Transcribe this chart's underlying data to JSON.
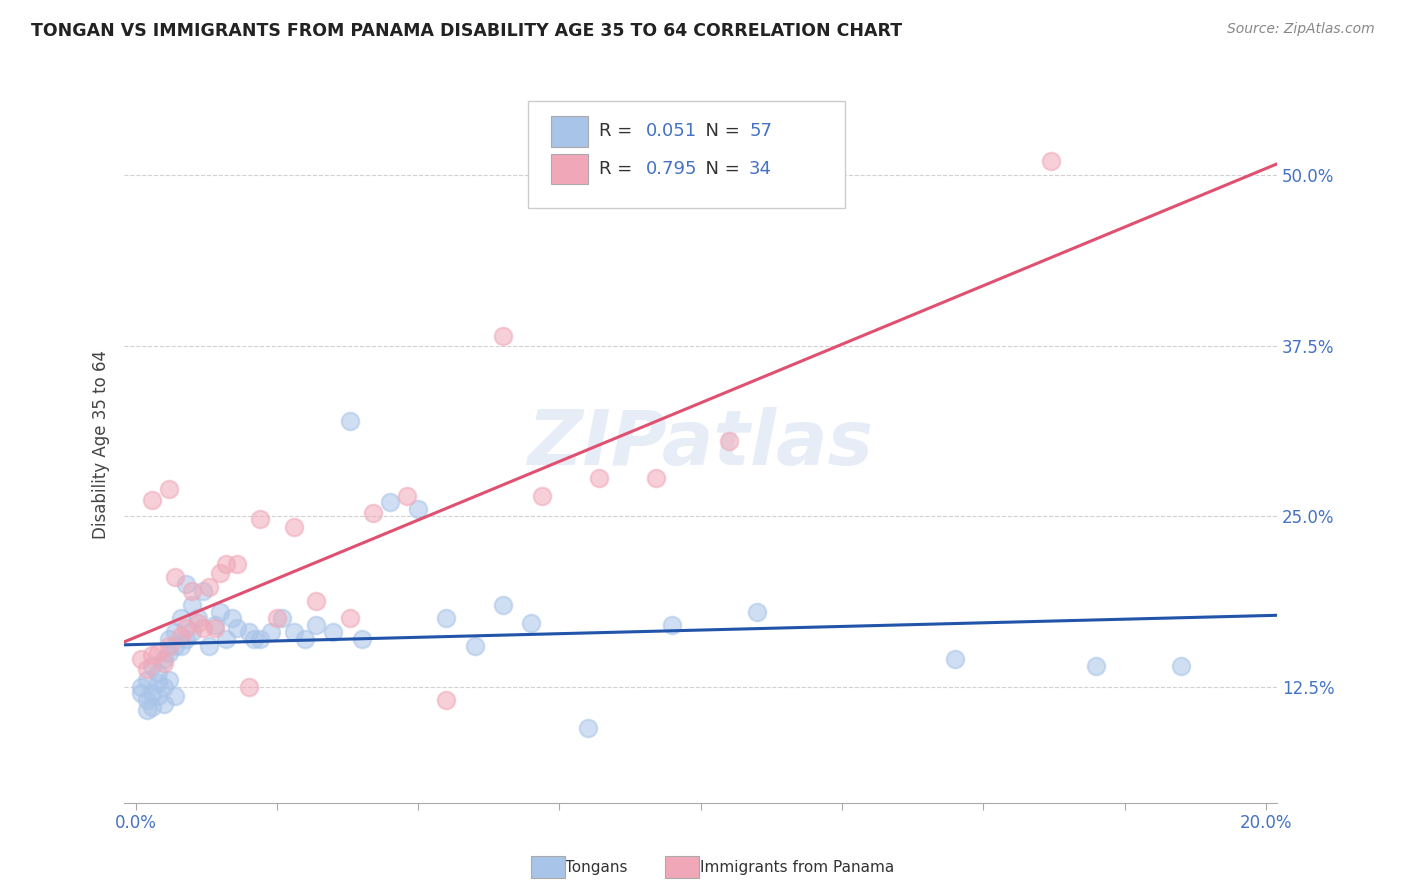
{
  "title": "TONGAN VS IMMIGRANTS FROM PANAMA DISABILITY AGE 35 TO 64 CORRELATION CHART",
  "source": "Source: ZipAtlas.com",
  "xlabel_vals": [
    0.0,
    0.025,
    0.05,
    0.075,
    0.1,
    0.125,
    0.15,
    0.175,
    0.2
  ],
  "xlabel_show": [
    0.0,
    0.2
  ],
  "ylabel_vals": [
    0.125,
    0.25,
    0.375,
    0.5
  ],
  "ylabel_label": "Disability Age 35 to 64",
  "xlim": [
    -0.002,
    0.202
  ],
  "ylim": [
    0.04,
    0.565
  ],
  "blue_R": 0.051,
  "blue_N": 57,
  "pink_R": 0.795,
  "pink_N": 34,
  "blue_color": "#a8c4e8",
  "pink_color": "#f0a8b8",
  "blue_line_color": "#2255aa",
  "pink_line_color": "#e05070",
  "legend_label1": "Tongans",
  "legend_label2": "Immigrants from Panama",
  "watermark": "ZIPatlas",
  "blue_x": [
    0.001,
    0.001,
    0.002,
    0.002,
    0.002,
    0.003,
    0.003,
    0.003,
    0.004,
    0.004,
    0.004,
    0.005,
    0.005,
    0.005,
    0.006,
    0.006,
    0.006,
    0.007,
    0.007,
    0.007,
    0.008,
    0.008,
    0.009,
    0.009,
    0.01,
    0.01,
    0.011,
    0.012,
    0.013,
    0.014,
    0.015,
    0.016,
    0.017,
    0.018,
    0.02,
    0.021,
    0.022,
    0.024,
    0.026,
    0.028,
    0.03,
    0.032,
    0.035,
    0.038,
    0.04,
    0.045,
    0.05,
    0.055,
    0.06,
    0.065,
    0.07,
    0.08,
    0.095,
    0.11,
    0.145,
    0.17,
    0.185
  ],
  "blue_y": [
    0.12,
    0.125,
    0.108,
    0.115,
    0.13,
    0.11,
    0.12,
    0.14,
    0.118,
    0.128,
    0.135,
    0.112,
    0.125,
    0.145,
    0.13,
    0.15,
    0.16,
    0.118,
    0.155,
    0.165,
    0.155,
    0.175,
    0.16,
    0.2,
    0.165,
    0.185,
    0.175,
    0.195,
    0.155,
    0.17,
    0.18,
    0.16,
    0.175,
    0.168,
    0.165,
    0.16,
    0.16,
    0.165,
    0.175,
    0.165,
    0.16,
    0.17,
    0.165,
    0.32,
    0.16,
    0.26,
    0.255,
    0.175,
    0.155,
    0.185,
    0.172,
    0.095,
    0.17,
    0.18,
    0.145,
    0.14,
    0.14
  ],
  "pink_x": [
    0.001,
    0.002,
    0.003,
    0.003,
    0.004,
    0.005,
    0.006,
    0.006,
    0.007,
    0.008,
    0.009,
    0.01,
    0.011,
    0.012,
    0.013,
    0.014,
    0.015,
    0.016,
    0.018,
    0.02,
    0.022,
    0.025,
    0.028,
    0.032,
    0.038,
    0.042,
    0.048,
    0.055,
    0.065,
    0.072,
    0.082,
    0.092,
    0.105,
    0.162
  ],
  "pink_y": [
    0.145,
    0.138,
    0.148,
    0.262,
    0.15,
    0.142,
    0.155,
    0.27,
    0.205,
    0.162,
    0.168,
    0.195,
    0.172,
    0.168,
    0.198,
    0.168,
    0.208,
    0.215,
    0.215,
    0.125,
    0.248,
    0.175,
    0.242,
    0.188,
    0.175,
    0.252,
    0.265,
    0.115,
    0.382,
    0.265,
    0.278,
    0.278,
    0.305,
    0.51
  ]
}
